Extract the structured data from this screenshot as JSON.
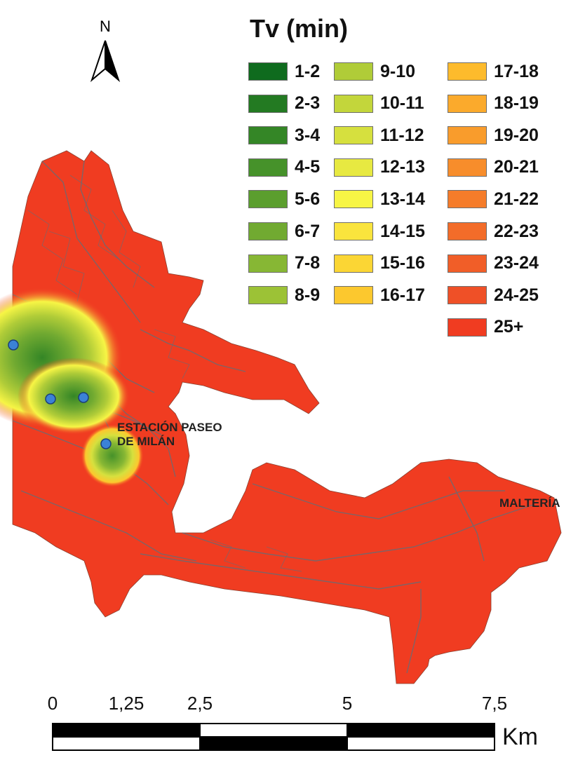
{
  "legend": {
    "title": "Tv (min)",
    "items": [
      {
        "label": "1-2",
        "color": "#0f6b1e"
      },
      {
        "label": "2-3",
        "color": "#237a22"
      },
      {
        "label": "3-4",
        "color": "#348626"
      },
      {
        "label": "4-5",
        "color": "#46922a"
      },
      {
        "label": "5-6",
        "color": "#5b9e2e"
      },
      {
        "label": "6-7",
        "color": "#71aa31"
      },
      {
        "label": "7-8",
        "color": "#87b734"
      },
      {
        "label": "8-9",
        "color": "#9cc236"
      },
      {
        "label": "9-10",
        "color": "#b0cc38"
      },
      {
        "label": "10-11",
        "color": "#c3d63b"
      },
      {
        "label": "11-12",
        "color": "#d6e03e"
      },
      {
        "label": "12-13",
        "color": "#e7e941"
      },
      {
        "label": "13-14",
        "color": "#f7f545"
      },
      {
        "label": "14-15",
        "color": "#fae43d"
      },
      {
        "label": "15-16",
        "color": "#fbd634"
      },
      {
        "label": "16-17",
        "color": "#fcc82e"
      },
      {
        "label": "17-18",
        "color": "#fdbb2c"
      },
      {
        "label": "18-19",
        "color": "#fbaa2c"
      },
      {
        "label": "19-20",
        "color": "#f99c2c"
      },
      {
        "label": "20-21",
        "color": "#f78d2b"
      },
      {
        "label": "21-22",
        "color": "#f57c2a"
      },
      {
        "label": "22-23",
        "color": "#f36c29"
      },
      {
        "label": "23-24",
        "color": "#f15e28"
      },
      {
        "label": "24-25",
        "color": "#ef5027"
      },
      {
        "label": "25+",
        "color": "#f03c21"
      }
    ]
  },
  "north_arrow": {
    "label": "N"
  },
  "places": [
    {
      "name": "ESTACIÓN PASEO\nDE MILÁN"
    },
    {
      "name": "MALTERÍA"
    }
  ],
  "scale_bar": {
    "ticks": [
      "0",
      "1,25",
      "2,5",
      "5",
      "7,5"
    ],
    "tick_values": [
      0,
      1.25,
      2.5,
      5,
      7.5
    ],
    "unit": "Km"
  },
  "colors": {
    "base_zone": "#f03c21",
    "road_lines": "#6b6b73",
    "station_marker": "#3b82d6"
  }
}
